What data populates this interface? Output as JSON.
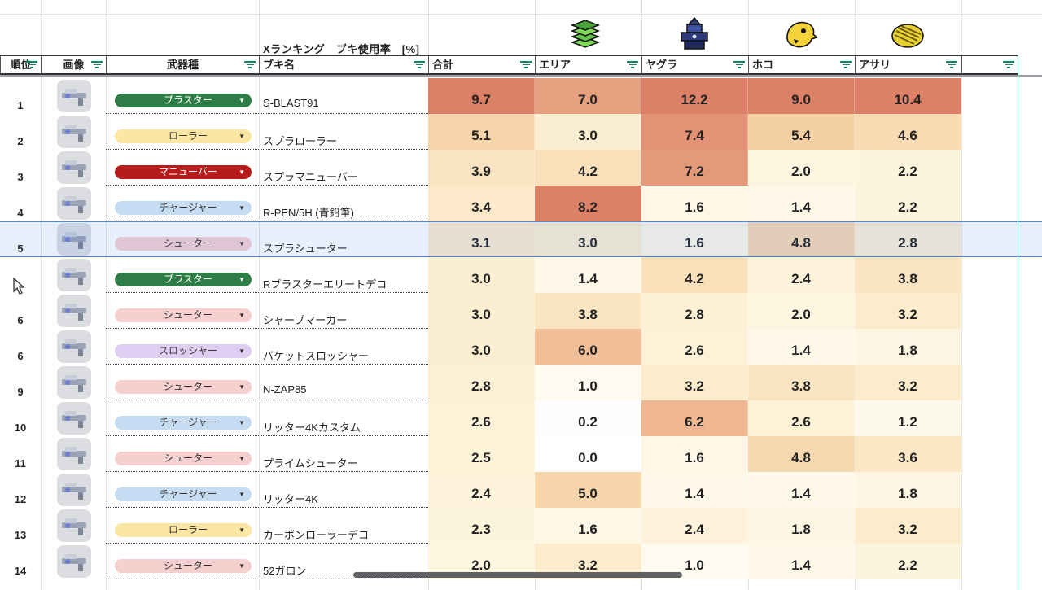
{
  "title": "Xランキング　ブキ使用率　[%]",
  "mode_icons": [
    "zones-icon",
    "tower-icon",
    "rainmaker-icon",
    "clam-icon"
  ],
  "headers": {
    "rank": "順位",
    "image": "画像",
    "type": "武器種",
    "name": "ブキ名",
    "total": "合計",
    "area": "エリア",
    "yagura": "ヤグラ",
    "hoko": "ホコ",
    "asari": "アサリ"
  },
  "rows": [
    {
      "rank": "1",
      "type": "ブラスター",
      "name": "S-BLAST91",
      "total": "9.7",
      "area": "7.0",
      "yagura": "12.2",
      "hoko": "9.0",
      "asari": "10.4"
    },
    {
      "rank": "2",
      "type": "ローラー",
      "name": "スプラローラー",
      "total": "5.1",
      "area": "3.0",
      "yagura": "7.4",
      "hoko": "5.4",
      "asari": "4.6"
    },
    {
      "rank": "3",
      "type": "マニューバー",
      "name": "スプラマニューバー",
      "total": "3.9",
      "area": "4.2",
      "yagura": "7.2",
      "hoko": "2.0",
      "asari": "2.2"
    },
    {
      "rank": "4",
      "type": "チャージャー",
      "name": "R-PEN/5H (青鉛筆)",
      "total": "3.4",
      "area": "8.2",
      "yagura": "1.6",
      "hoko": "1.4",
      "asari": "2.2"
    },
    {
      "rank": "5",
      "type": "シューター",
      "name": "スプラシューター",
      "total": "3.1",
      "area": "3.0",
      "yagura": "1.6",
      "hoko": "4.8",
      "asari": "2.8"
    },
    {
      "rank": "",
      "type": "ブラスター",
      "name": "Rブラスターエリートデコ",
      "total": "3.0",
      "area": "1.4",
      "yagura": "4.2",
      "hoko": "2.4",
      "asari": "3.8"
    },
    {
      "rank": "6",
      "type": "シューター",
      "name": "シャープマーカー",
      "total": "3.0",
      "area": "3.8",
      "yagura": "2.8",
      "hoko": "2.0",
      "asari": "3.2"
    },
    {
      "rank": "6",
      "type": "スロッシャー",
      "name": "バケットスロッシャー",
      "total": "3.0",
      "area": "6.0",
      "yagura": "2.6",
      "hoko": "1.4",
      "asari": "1.8"
    },
    {
      "rank": "9",
      "type": "シューター",
      "name": "N-ZAP85",
      "total": "2.8",
      "area": "1.0",
      "yagura": "3.2",
      "hoko": "3.8",
      "asari": "3.2"
    },
    {
      "rank": "10",
      "type": "チャージャー",
      "name": "リッター4Kカスタム",
      "total": "2.6",
      "area": "0.2",
      "yagura": "6.2",
      "hoko": "2.6",
      "asari": "1.2"
    },
    {
      "rank": "11",
      "type": "シューター",
      "name": "プライムシューター",
      "total": "2.5",
      "area": "0.0",
      "yagura": "1.6",
      "hoko": "4.8",
      "asari": "3.6"
    },
    {
      "rank": "12",
      "type": "チャージャー",
      "name": "リッター4K",
      "total": "2.4",
      "area": "5.0",
      "yagura": "1.4",
      "hoko": "1.4",
      "asari": "1.8"
    },
    {
      "rank": "13",
      "type": "ローラー",
      "name": "カーボンローラーデコ",
      "total": "2.3",
      "area": "1.6",
      "yagura": "2.4",
      "hoko": "1.8",
      "asari": "3.2"
    },
    {
      "rank": "14",
      "type": "シューター",
      "name": "52ガロン",
      "total": "2.0",
      "area": "3.2",
      "yagura": "1.0",
      "hoko": "1.4",
      "asari": "2.2"
    }
  ],
  "type_colors": {
    "ブラスター": {
      "bg": "#2e7d46",
      "fg": "#ffffff"
    },
    "ローラー": {
      "bg": "#fce6a4",
      "fg": "#333333"
    },
    "マニューバー": {
      "bg": "#b71c1c",
      "fg": "#ffffff"
    },
    "チャージャー": {
      "bg": "#c6dcf3",
      "fg": "#333333"
    },
    "シューター": {
      "bg": "#f6cfcf",
      "fg": "#333333"
    },
    "スロッシャー": {
      "bg": "#dfcdf2",
      "fg": "#333333"
    }
  },
  "selected_row_index": 4,
  "cursor": "pointer-cursor"
}
